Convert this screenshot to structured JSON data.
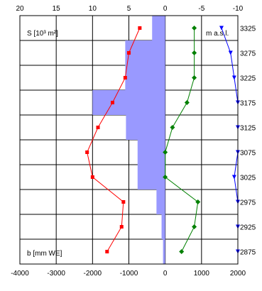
{
  "chart_data": {
    "type": "line",
    "label_s": "S [10³ m²]",
    "label_elev": "m a.s.l.",
    "label_b": "b [mm WE]",
    "top_axis": {
      "range": [
        20,
        -10
      ],
      "ticks": [
        "20",
        "15",
        "10",
        "5",
        "0",
        "-5",
        "-10"
      ]
    },
    "bottom_axis": {
      "range": [
        -4000,
        2000
      ],
      "ticks": [
        "-4000",
        "-3000",
        "-2000",
        "-1000",
        "0",
        "1000",
        "2000"
      ]
    },
    "y_axis": {
      "range": [
        2850,
        3350
      ],
      "ticks": [
        "3325",
        "3275",
        "3225",
        "3175",
        "3125",
        "3075",
        "3025",
        "2975",
        "2925",
        "2875"
      ]
    },
    "area_bars": {
      "name": "S [10³ m²]",
      "elevations": [
        3325,
        3275,
        3225,
        3175,
        3125,
        3075,
        3025,
        2975,
        2925,
        2875
      ],
      "values": [
        1.8,
        5.5,
        5.5,
        10,
        5.4,
        3.8,
        3.8,
        1.2,
        0.5,
        0.3
      ]
    },
    "series": [
      {
        "name": "b [mm WE]",
        "color": "#ff0000",
        "elevations": [
          3325,
          3275,
          3225,
          3175,
          3125,
          3075,
          3025,
          2975,
          2925,
          2875
        ],
        "values": [
          -700,
          -1000,
          -1100,
          -1450,
          -1850,
          -2150,
          -2000,
          -1150,
          -1200,
          -1600
        ]
      },
      {
        "color": "#008000",
        "elevations": [
          3325,
          3275,
          3225,
          3175,
          3125,
          3075,
          3025,
          2975,
          2925,
          2875
        ],
        "values": [
          800,
          800,
          800,
          600,
          200,
          0,
          0,
          900,
          800,
          450
        ]
      },
      {
        "color": "#0000ff",
        "elevations": [
          3325,
          3275,
          3225,
          3175,
          3125,
          3075,
          3025,
          2975,
          2925,
          2875
        ],
        "values": [
          1550,
          1800,
          1900,
          2000,
          2000,
          2000,
          1900,
          2000,
          2000,
          2000
        ]
      }
    ]
  }
}
